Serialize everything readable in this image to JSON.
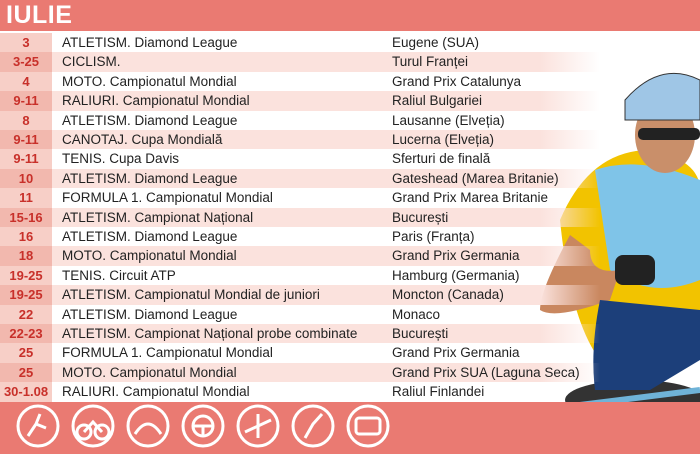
{
  "header": {
    "title": "IULIE"
  },
  "table": {
    "rows": [
      {
        "date": "3",
        "sport": "ATLETISM.",
        "detail": "Diamond League",
        "location": "Eugene (SUA)"
      },
      {
        "date": "3-25",
        "sport": "CICLISM.",
        "location": "Turul Franței"
      },
      {
        "date": "4",
        "sport": "MOTO.",
        "detail": "Campionatul Mondial",
        "location": "Grand Prix Catalunya"
      },
      {
        "date": "9-11",
        "sport": "RALIURI.",
        "detail": "Campionatul Mondial",
        "location": "Raliul Bulgariei"
      },
      {
        "date": "8",
        "sport": "ATLETISM.",
        "detail": "Diamond League",
        "location": "Lausanne (Elveția)"
      },
      {
        "date": "9-11",
        "sport": "CANOTAJ.",
        "detail": "Cupa Mondială",
        "location": "Lucerna (Elveția)"
      },
      {
        "date": "9-11",
        "sport": "TENIS.",
        "detail": "Cupa Davis",
        "location": "Sferturi de finală"
      },
      {
        "date": "10",
        "sport": "ATLETISM.",
        "detail": "Diamond League",
        "location": "Gateshead (Marea Britanie)"
      },
      {
        "date": "11",
        "sport": "FORMULA 1.",
        "detail": "Campionatul Mondial",
        "location": "Grand Prix Marea Britanie"
      },
      {
        "date": "15-16",
        "sport": "ATLETISM.",
        "detail": "Campionat Național",
        "location": "București"
      },
      {
        "date": "16",
        "sport": "ATLETISM.",
        "detail": "Diamond League",
        "location": "Paris (Franța)"
      },
      {
        "date": "18",
        "sport": "MOTO.",
        "detail": "Campionatul Mondial",
        "location": "Grand Prix Germania"
      },
      {
        "date": "19-25",
        "sport": "TENIS.",
        "detail": "Circuit ATP",
        "location": "Hamburg (Germania)"
      },
      {
        "date": "19-25",
        "sport": "ATLETISM.",
        "detail": "Campionatul Mondial de juniori",
        "location": "Moncton (Canada)"
      },
      {
        "date": "22",
        "sport": "ATLETISM.",
        "detail": "Diamond League",
        "location": "Monaco"
      },
      {
        "date": "22-23",
        "sport": "ATLETISM.",
        "detail": "Campionat Național probe combinate",
        "location": "București"
      },
      {
        "date": "25",
        "sport": "FORMULA 1.",
        "detail": "Campionatul Mondial",
        "location": "Grand Prix Germania"
      },
      {
        "date": "25",
        "sport": "MOTO.",
        "detail": "Campionatul Mondial",
        "location": "Grand Prix SUA (Laguna Seca)"
      },
      {
        "date": "30-1.08",
        "sport": "RALIURI.",
        "detail": "Campionatul Mondial",
        "location": "Raliul Finlandei"
      }
    ]
  }
}
